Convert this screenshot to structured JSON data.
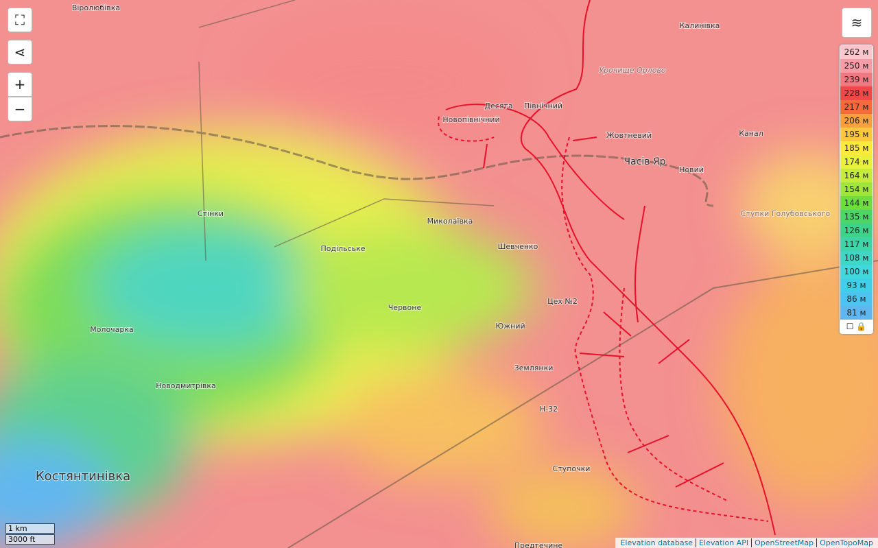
{
  "controls": {
    "zoom_in": "+",
    "zoom_out": "−"
  },
  "places": [
    {
      "name": "Віролюбівка"
    },
    {
      "name": "Калинівка"
    },
    {
      "name": "Урочище Орлово"
    },
    {
      "name": "Десята"
    },
    {
      "name": "Північний"
    },
    {
      "name": "Новопівнічний"
    },
    {
      "name": "Жовтневий"
    },
    {
      "name": "Часів Яр"
    },
    {
      "name": "Новий"
    },
    {
      "name": "Канал"
    },
    {
      "name": "Ступки Голубовського"
    },
    {
      "name": "Стінки"
    },
    {
      "name": "Миколаївка"
    },
    {
      "name": "Подільське"
    },
    {
      "name": "Шевченко"
    },
    {
      "name": "Червоне"
    },
    {
      "name": "Цех №2"
    },
    {
      "name": "Южний"
    },
    {
      "name": "Молочарка"
    },
    {
      "name": "Новодмитрівка"
    },
    {
      "name": "Землянки"
    },
    {
      "name": "Н-32"
    },
    {
      "name": "Ступочки"
    },
    {
      "name": "Костянтинівка"
    },
    {
      "name": "Предтечине"
    }
  ],
  "legend": [
    {
      "label": "262 м",
      "color": "#f9c6cc"
    },
    {
      "label": "250 м",
      "color": "#f59ca6"
    },
    {
      "label": "239 м",
      "color": "#f07880"
    },
    {
      "label": "228 м",
      "color": "#ee4848"
    },
    {
      "label": "217 м",
      "color": "#f46a3a"
    },
    {
      "label": "206 м",
      "color": "#f7a040"
    },
    {
      "label": "195 м",
      "color": "#fbc73e"
    },
    {
      "label": "185 м",
      "color": "#fde83c"
    },
    {
      "label": "174 м",
      "color": "#e8f03c"
    },
    {
      "label": "164 м",
      "color": "#c5ec3c"
    },
    {
      "label": "154 м",
      "color": "#9fe53c"
    },
    {
      "label": "144 м",
      "color": "#6fdc40"
    },
    {
      "label": "135 м",
      "color": "#4ed56a"
    },
    {
      "label": "126 м",
      "color": "#3fd28a"
    },
    {
      "label": "117 м",
      "color": "#3fd4a8"
    },
    {
      "label": "108 м",
      "color": "#3fd6c6"
    },
    {
      "label": "100 м",
      "color": "#40d8dc"
    },
    {
      "label": "93 м",
      "color": "#40cfe8"
    },
    {
      "label": "86 м",
      "color": "#4fc3ef"
    },
    {
      "label": "81 м",
      "color": "#60b7f0"
    }
  ],
  "scale": {
    "metric": "1 km",
    "imperial": "3000 ft"
  },
  "attribution": [
    "Elevation database",
    "Elevation API",
    "OpenStreetMap",
    "OpenTopoMap"
  ]
}
